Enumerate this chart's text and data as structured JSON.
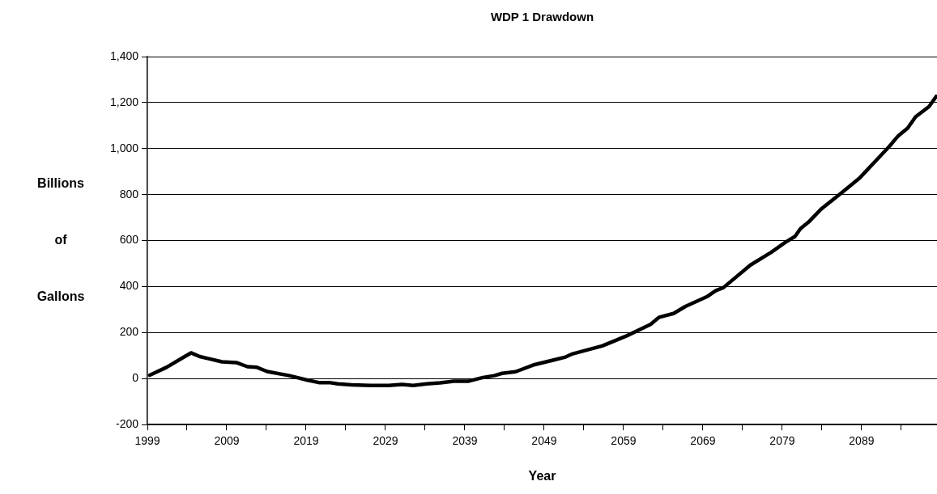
{
  "chart_data": {
    "type": "line",
    "title": "WDP 1 Drawdown",
    "xlabel": "Year",
    "ylabel": "Billions of Gallons",
    "x": [
      1999.3,
      2001.4,
      2003.4,
      2004.5,
      2005.6,
      2008.4,
      2010.2,
      2011.6,
      2012.8,
      2014.1,
      2016.9,
      2019.2,
      2020.6,
      2021.9,
      2023,
      2024.7,
      2027.1,
      2029.4,
      2031.1,
      2032.5,
      2034.2,
      2035.9,
      2037.6,
      2039.5,
      2041.3,
      2042.7,
      2043.7,
      2045.4,
      2047.8,
      2050.2,
      2051.7,
      2052.6,
      2056.3,
      2059.4,
      2062.4,
      2063.5,
      2065.3,
      2066.8,
      2069.6,
      2070.6,
      2071.6,
      2075,
      2077.6,
      2079.4,
      2080.6,
      2081.3,
      2082.3,
      2083.9,
      2086.6,
      2088.8,
      2090.7,
      2092.5,
      2093.6,
      2094.8,
      2095.8,
      2097.5,
      2098.4
    ],
    "series": [
      {
        "color": "#000000",
        "values": [
          15,
          49,
          90,
          112,
          96,
          73,
          70,
          52,
          49,
          31,
          13,
          -7,
          -17,
          -17,
          -23,
          -27,
          -30,
          -30,
          -25,
          -30,
          -23,
          -18,
          -11,
          -11,
          5,
          13,
          23,
          30,
          61,
          81,
          94,
          108,
          142,
          186,
          236,
          267,
          283,
          314,
          358,
          382,
          396,
          494,
          549,
          593,
          618,
          652,
          680,
          737,
          811,
          874,
          944,
          1010,
          1055,
          1089,
          1138,
          1183,
          1227
        ]
      }
    ],
    "xlim": [
      1999,
      2098.5
    ],
    "xticks": [
      1999,
      {
        "value": 2004,
        "label": null
      },
      2009,
      {
        "value": 2014,
        "label": null
      },
      2019,
      {
        "value": 2024,
        "label": null
      },
      2029,
      {
        "value": 2034,
        "label": null
      },
      2039,
      {
        "value": 2044,
        "label": null
      },
      2049,
      {
        "value": 2054,
        "label": null
      },
      2059,
      {
        "value": 2064,
        "label": null
      },
      2069,
      {
        "value": 2074,
        "label": null
      },
      2079,
      {
        "value": 2084,
        "label": null
      },
      2089,
      {
        "value": 2094,
        "label": null
      }
    ],
    "ylim": [
      -200,
      1400
    ],
    "yticks": [
      {
        "value": -200,
        "label": "-200"
      },
      {
        "value": 0,
        "label": "0"
      },
      {
        "value": 200,
        "label": "200"
      },
      {
        "value": 400,
        "label": "400"
      },
      {
        "value": 600,
        "label": "600"
      },
      {
        "value": 800,
        "label": "800"
      },
      {
        "value": 1000,
        "label": "1,000"
      },
      {
        "value": 1200,
        "label": "1,200"
      },
      {
        "value": 1400,
        "label": "1,400"
      }
    ],
    "grid": "y",
    "marker": "none",
    "line_style": "solid"
  }
}
